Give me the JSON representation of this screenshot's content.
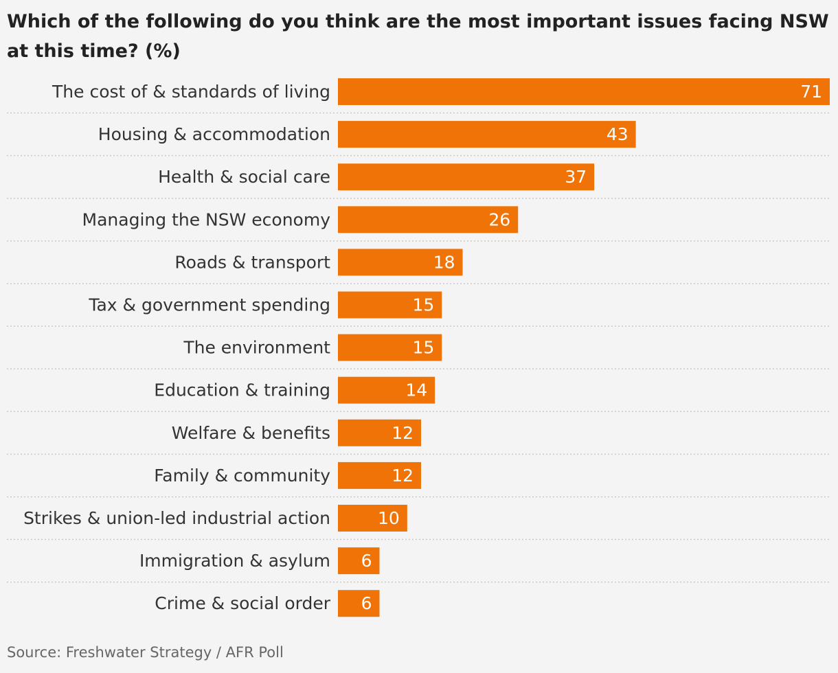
{
  "chart_data": {
    "type": "bar",
    "orientation": "horizontal",
    "title": "Which of the following do you think are the most important issues facing NSW at this time? (%)",
    "categories": [
      "The cost of & standards of living",
      "Housing & accommodation",
      "Health & social care",
      "Managing the NSW economy",
      "Roads & transport",
      "Tax & government spending",
      "The environment",
      "Education & training",
      "Welfare & benefits",
      "Family & community",
      "Strikes & union-led industrial action",
      "Immigration & asylum",
      "Crime & social order"
    ],
    "values": [
      71,
      43,
      37,
      26,
      18,
      15,
      15,
      14,
      12,
      12,
      10,
      6,
      6
    ],
    "xlim": [
      0,
      71
    ],
    "grid": false,
    "data_labels": true,
    "bar_color": "#ef7306",
    "source": "Source: Freshwater Strategy / AFR Poll"
  }
}
